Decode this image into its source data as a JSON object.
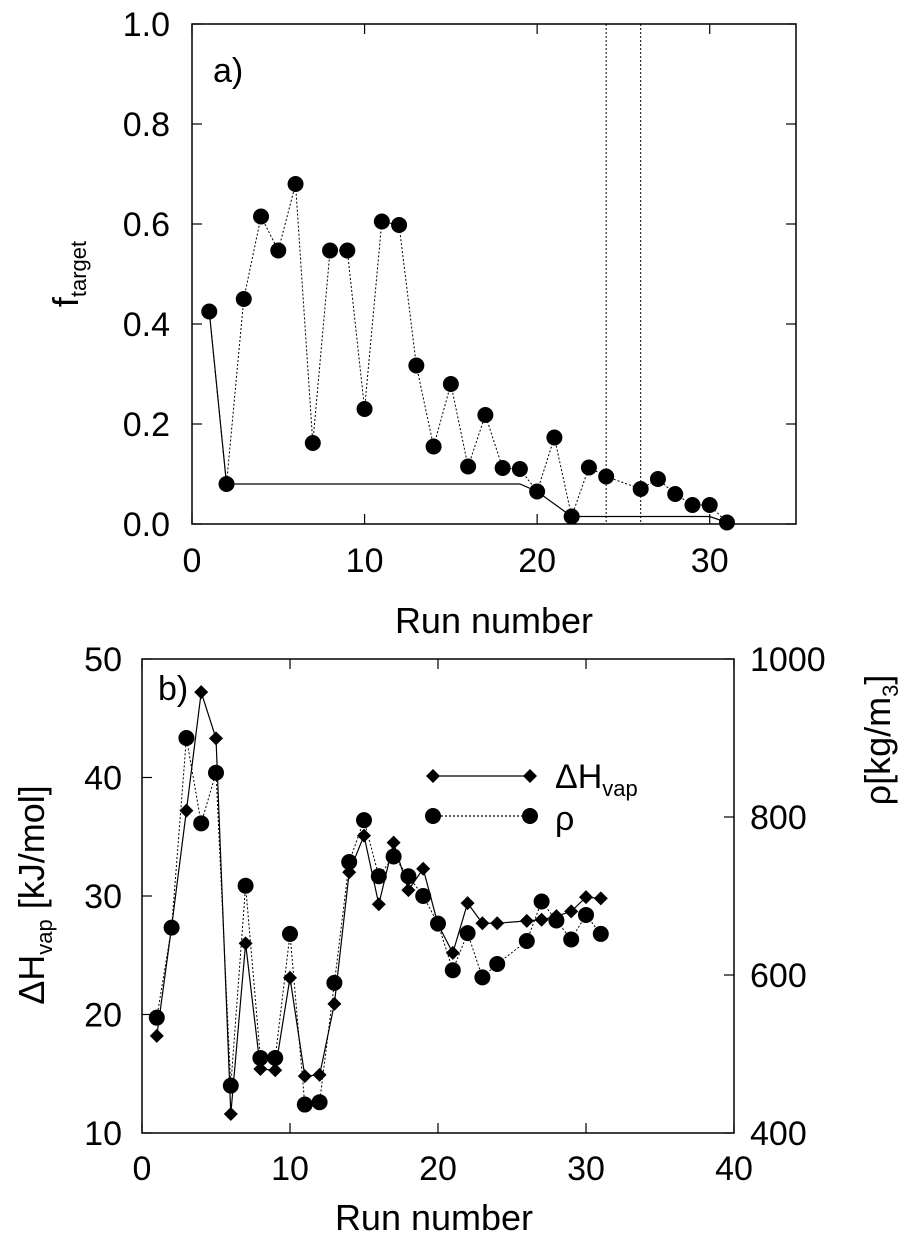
{
  "chart_data": [
    {
      "panel": "a)",
      "type": "scatter",
      "xlabel": "Run  number",
      "ylabel": "f",
      "ylabel_subscript": "target",
      "xlim": [
        0,
        35
      ],
      "ylim": [
        0,
        1.0
      ],
      "x_ticks": [
        0,
        10,
        20,
        30
      ],
      "x_tick_labels": [
        "0",
        "10",
        "20",
        "30"
      ],
      "y_ticks": [
        0,
        0.2,
        0.4,
        0.6,
        0.8,
        1.0
      ],
      "y_tick_labels": [
        "0.0",
        "0.2",
        "0.4",
        "0.6",
        "0.8",
        "1.0"
      ],
      "grid": false,
      "series": [
        {
          "style": "circles-dotted",
          "x": [
            1,
            2,
            3,
            4,
            5,
            6,
            7,
            8,
            9,
            10,
            11,
            12,
            13,
            14,
            15,
            16,
            17,
            18,
            19,
            20,
            21,
            22,
            23,
            24,
            26,
            27,
            28,
            29,
            30,
            31
          ],
          "y": [
            0.425,
            0.08,
            0.45,
            0.615,
            0.547,
            0.68,
            0.162,
            0.547,
            0.547,
            0.23,
            0.605,
            0.598,
            0.317,
            0.155,
            0.28,
            0.115,
            0.218,
            0.112,
            0.11,
            0.065,
            0.173,
            0.015,
            0.113,
            0.095,
            0.07,
            0.09,
            0.06,
            0.038,
            0.038,
            0.003
          ]
        },
        {
          "style": "solid-line",
          "x": [
            1,
            2,
            19,
            20,
            22,
            30,
            31
          ],
          "y": [
            0.425,
            0.08,
            0.08,
            0.065,
            0.015,
            0.015,
            0.003
          ]
        }
      ],
      "vertical_dotted_lines": [
        24,
        26
      ]
    },
    {
      "panel": "b)",
      "type": "line",
      "xlabel": "Run number",
      "ylabel": "ΔH",
      "ylabel_subscript": "vap",
      "ylabel_units": " [kJ/mol]",
      "y2label": "ρ[kg/m",
      "y2label_subscript": "3",
      "y2label_close": "]",
      "xlim": [
        0,
        40
      ],
      "ylim": [
        10,
        50
      ],
      "y2lim": [
        400,
        1000
      ],
      "x_ticks": [
        0,
        10,
        20,
        30,
        40
      ],
      "x_tick_labels": [
        "0",
        "10",
        "20",
        "30",
        "40"
      ],
      "y_ticks": [
        10,
        20,
        30,
        40,
        50
      ],
      "y_tick_labels": [
        "10",
        "20",
        "30",
        "40",
        "50"
      ],
      "y2_ticks": [
        400,
        600,
        800,
        1000
      ],
      "y2_tick_labels": [
        "400",
        "600",
        "800",
        "1000"
      ],
      "grid": false,
      "legend_position": "upper-right",
      "series": [
        {
          "name": "ΔH",
          "name_subscript": "vap",
          "marker": "diamond",
          "line": "solid",
          "axis": "left",
          "x": [
            1,
            2,
            3,
            4,
            5,
            6,
            7,
            8,
            9,
            10,
            11,
            12,
            13,
            14,
            15,
            16,
            17,
            18,
            19,
            20,
            21,
            22,
            23,
            24,
            26,
            27,
            28,
            29,
            30,
            31
          ],
          "y": [
            18.2,
            27.4,
            37.2,
            47.2,
            43.3,
            11.6,
            26.0,
            15.4,
            15.3,
            23.1,
            14.8,
            14.9,
            20.9,
            32.0,
            35.1,
            29.3,
            34.5,
            30.5,
            32.3,
            27.6,
            25.2,
            29.4,
            27.7,
            27.7,
            27.9,
            28.0,
            28.3,
            28.7,
            29.9,
            29.8
          ]
        },
        {
          "name": "ρ",
          "marker": "circle",
          "line": "dotted",
          "axis": "right",
          "x": [
            1,
            2,
            3,
            4,
            5,
            6,
            7,
            8,
            9,
            10,
            11,
            12,
            13,
            14,
            15,
            16,
            17,
            18,
            19,
            20,
            21,
            22,
            23,
            24,
            26,
            27,
            28,
            29,
            30,
            31
          ],
          "y": [
            546,
            660,
            900,
            792,
            856,
            460,
            713,
            495,
            495,
            652,
            436,
            439,
            590,
            743,
            796,
            725,
            750,
            725,
            700,
            665,
            606,
            653,
            597,
            614,
            643,
            693,
            669,
            645,
            676,
            652
          ]
        }
      ]
    }
  ]
}
